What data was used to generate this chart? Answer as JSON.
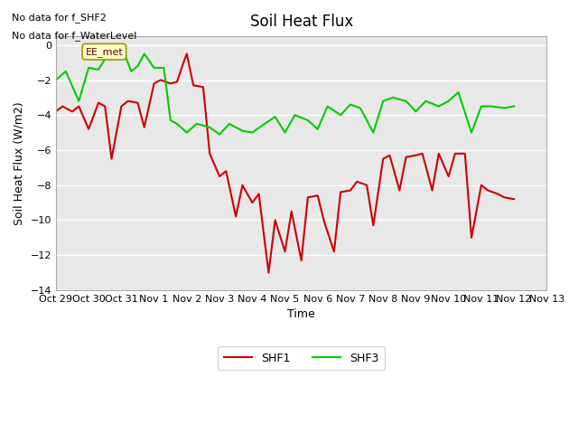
{
  "title": "Soil Heat Flux",
  "xlabel": "Time",
  "ylabel": "Soil Heat Flux (W/m2)",
  "ylim": [
    -14,
    0.5
  ],
  "yticks": [
    0,
    -2,
    -4,
    -6,
    -8,
    -10,
    -12,
    -14
  ],
  "no_data_text1": "No data for f_SHF2",
  "no_data_text2": "No data for f_WaterLevel",
  "box_label": "EE_met",
  "legend_entries": [
    "SHF1",
    "SHF3"
  ],
  "shf1_color": "#cc0000",
  "shf3_color": "#00cc00",
  "bg_color": "#ffffff",
  "plot_bg_color": "#e8e8e8",
  "grid_color": "#ffffff",
  "x_labels": [
    "Oct 29",
    "Oct 30",
    "Oct 31",
    "Nov 1",
    "Nov 2",
    "Nov 3",
    "Nov 4",
    "Nov 5",
    "Nov 6",
    "Nov 7",
    "Nov 8",
    "Nov 9",
    "Nov 10",
    "Nov 11",
    "Nov 12",
    "Nov 13"
  ],
  "x_tick_positions": [
    0,
    1,
    2,
    3,
    4,
    5,
    6,
    7,
    8,
    9,
    10,
    11,
    12,
    13,
    14,
    15
  ],
  "xlim": [
    0,
    15
  ],
  "shf1_x": [
    0.0,
    0.2,
    0.5,
    0.7,
    1.0,
    1.3,
    1.5,
    1.7,
    2.0,
    2.2,
    2.5,
    2.7,
    3.0,
    3.2,
    3.5,
    3.7,
    3.9,
    4.0,
    4.2,
    4.5,
    4.7,
    5.0,
    5.2,
    5.5,
    5.7,
    6.0,
    6.2,
    6.5,
    6.7,
    7.0,
    7.2,
    7.5,
    7.7,
    8.0,
    8.2,
    8.5,
    8.7,
    9.0,
    9.2,
    9.5,
    9.7,
    10.0,
    10.2,
    10.5,
    10.7,
    11.0,
    11.2,
    11.5,
    11.7,
    12.0,
    12.2,
    12.5,
    12.7,
    13.0,
    13.2,
    13.5,
    13.7,
    14.0
  ],
  "shf1_y": [
    -3.8,
    -3.5,
    -3.8,
    -3.5,
    -4.8,
    -3.3,
    -3.5,
    -6.5,
    -3.5,
    -3.2,
    -3.3,
    -4.7,
    -2.2,
    -2.0,
    -2.2,
    -2.1,
    -1.0,
    -0.5,
    -2.3,
    -2.4,
    -6.2,
    -7.5,
    -7.2,
    -9.8,
    -8.0,
    -9.0,
    -8.5,
    -13.0,
    -10.0,
    -11.8,
    -9.5,
    -12.3,
    -8.7,
    -8.6,
    -10.1,
    -11.8,
    -8.4,
    -8.3,
    -7.8,
    -8.0,
    -10.3,
    -6.5,
    -6.3,
    -8.3,
    -6.4,
    -6.3,
    -6.2,
    -8.3,
    -6.2,
    -7.5,
    -6.2,
    -6.2,
    -11.0,
    -8.0,
    -8.3,
    -8.5,
    -8.7,
    -8.8
  ],
  "shf3_x": [
    0.0,
    0.3,
    0.7,
    1.0,
    1.3,
    1.7,
    2.0,
    2.3,
    2.5,
    2.7,
    3.0,
    3.3,
    3.5,
    3.7,
    4.0,
    4.3,
    4.7,
    5.0,
    5.3,
    5.7,
    6.0,
    6.3,
    6.7,
    7.0,
    7.3,
    7.7,
    8.0,
    8.3,
    8.7,
    9.0,
    9.3,
    9.7,
    10.0,
    10.3,
    10.7,
    11.0,
    11.3,
    11.7,
    12.0,
    12.3,
    12.7,
    13.0,
    13.3,
    13.7,
    14.0
  ],
  "shf3_y": [
    -2.0,
    -1.5,
    -3.2,
    -1.3,
    -1.4,
    -0.2,
    -0.05,
    -1.5,
    -1.2,
    -0.5,
    -1.3,
    -1.3,
    -4.3,
    -4.5,
    -5.0,
    -4.5,
    -4.7,
    -5.1,
    -4.5,
    -4.9,
    -5.0,
    -4.6,
    -4.1,
    -5.0,
    -4.0,
    -4.3,
    -4.8,
    -3.5,
    -4.0,
    -3.4,
    -3.6,
    -5.0,
    -3.2,
    -3.0,
    -3.2,
    -3.8,
    -3.2,
    -3.5,
    -3.2,
    -2.7,
    -5.0,
    -3.5,
    -3.5,
    -3.6,
    -3.5
  ]
}
